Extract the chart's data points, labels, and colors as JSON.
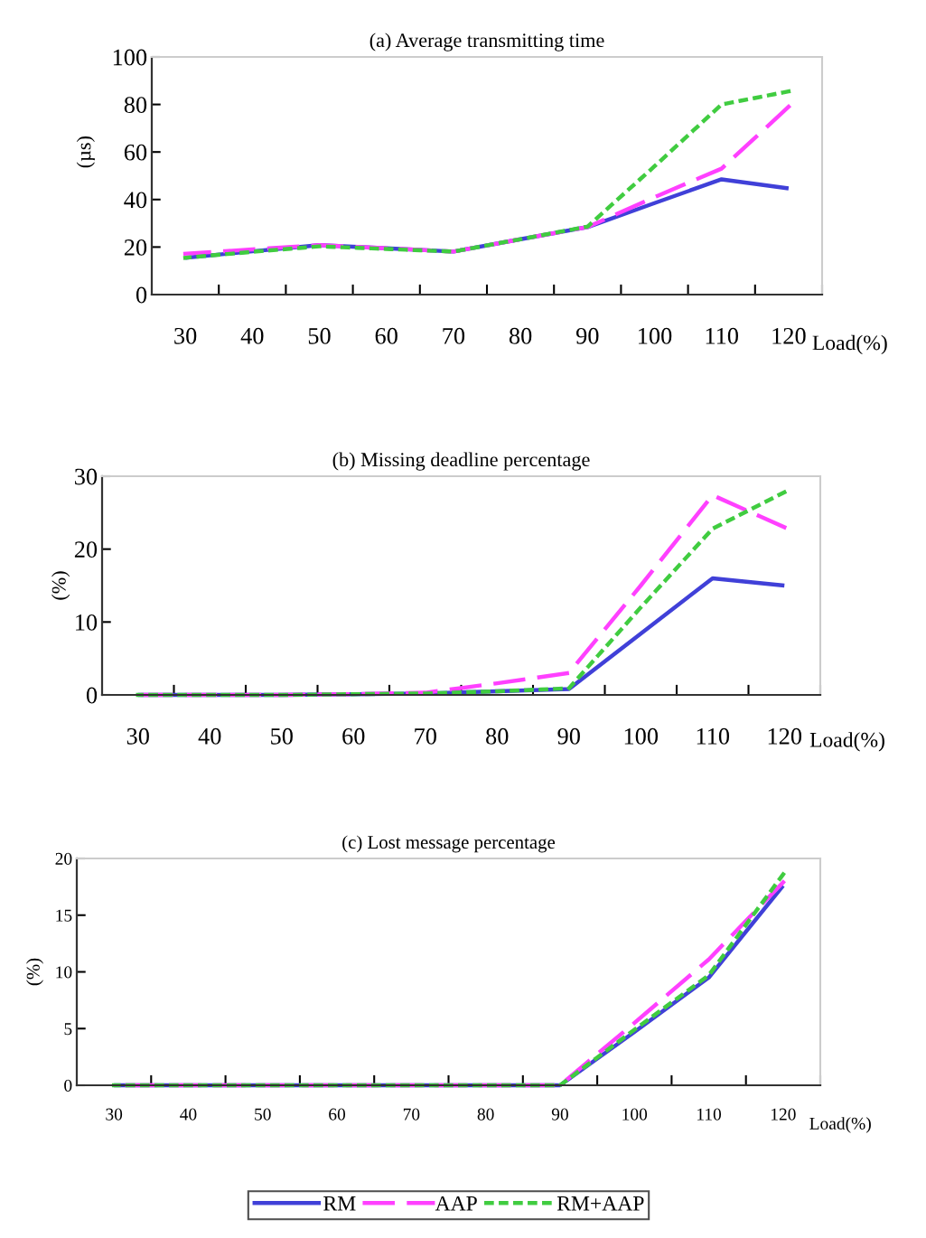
{
  "chart_data": [
    {
      "type": "line",
      "title": "(a) Average transmitting time",
      "xlabel": "Load(%)",
      "ylabel": "(µs)",
      "categories": [
        "30",
        "40",
        "50",
        "60",
        "70",
        "80",
        "90",
        "100",
        "110",
        "120"
      ],
      "ylim": [
        0,
        100
      ],
      "yticks": [
        0,
        20,
        40,
        60,
        80,
        100
      ],
      "grid": false,
      "legend": false,
      "series": [
        {
          "color": "#4040d8",
          "line_style": "solid",
          "values": [
            15.5,
            18.2,
            20.8,
            19.5,
            18.1,
            23.3,
            28.4,
            38.5,
            48.5,
            44.7
          ]
        },
        {
          "color": "#ff40ff",
          "line_style": "dashed",
          "values": [
            17.2,
            19,
            20.8,
            19.5,
            18.1,
            23.3,
            28.4,
            41,
            53,
            79
          ]
        },
        {
          "color": "#40cc40",
          "line_style": "dotted",
          "values": [
            15.5,
            18,
            20.3,
            19.2,
            18.1,
            23.3,
            28.6,
            54,
            80,
            85.5
          ]
        }
      ]
    },
    {
      "type": "line",
      "title": "(b) Missing deadline percentage",
      "xlabel": "Load(%)",
      "ylabel": "(%)",
      "categories": [
        "30",
        "40",
        "50",
        "60",
        "70",
        "80",
        "90",
        "100",
        "110",
        "120"
      ],
      "ylim": [
        0,
        30
      ],
      "yticks": [
        0,
        10,
        20,
        30
      ],
      "grid": false,
      "legend": false,
      "series": [
        {
          "color": "#4040d8",
          "line_style": "solid",
          "values": [
            0,
            0,
            0,
            0.1,
            0.2,
            0.5,
            0.8,
            8.4,
            16,
            15
          ]
        },
        {
          "color": "#ff40ff",
          "line_style": "dashed",
          "values": [
            0,
            0,
            0,
            0.1,
            0.3,
            1.6,
            3,
            15,
            27.4,
            23
          ]
        },
        {
          "color": "#40cc40",
          "line_style": "dotted",
          "values": [
            0,
            0,
            0,
            0.1,
            0.2,
            0.5,
            0.9,
            12,
            22.8,
            27.8
          ]
        }
      ]
    },
    {
      "type": "line",
      "title": "(c) Lost message percentage",
      "xlabel": "Load(%)",
      "ylabel": "(%)",
      "categories": [
        "30",
        "40",
        "50",
        "60",
        "70",
        "80",
        "90",
        "100",
        "110",
        "120"
      ],
      "ylim": [
        0,
        20
      ],
      "yticks": [
        0,
        5,
        10,
        15,
        20
      ],
      "grid": false,
      "legend": "bottom",
      "series": [
        {
          "name": "RM",
          "color": "#4040d8",
          "line_style": "solid",
          "values": [
            0,
            0,
            0,
            0,
            0,
            0,
            0,
            4.7,
            9.5,
            17.6
          ]
        },
        {
          "name": "AAP",
          "color": "#ff40ff",
          "line_style": "dashed",
          "values": [
            0,
            0,
            0,
            0,
            0,
            0,
            0,
            5.5,
            11.1,
            17.9
          ]
        },
        {
          "name": "RM+AAP",
          "color": "#40cc40",
          "line_style": "dotted",
          "values": [
            0,
            0,
            0,
            0,
            0,
            0,
            0,
            4.9,
            9.7,
            18.6
          ]
        }
      ]
    }
  ]
}
